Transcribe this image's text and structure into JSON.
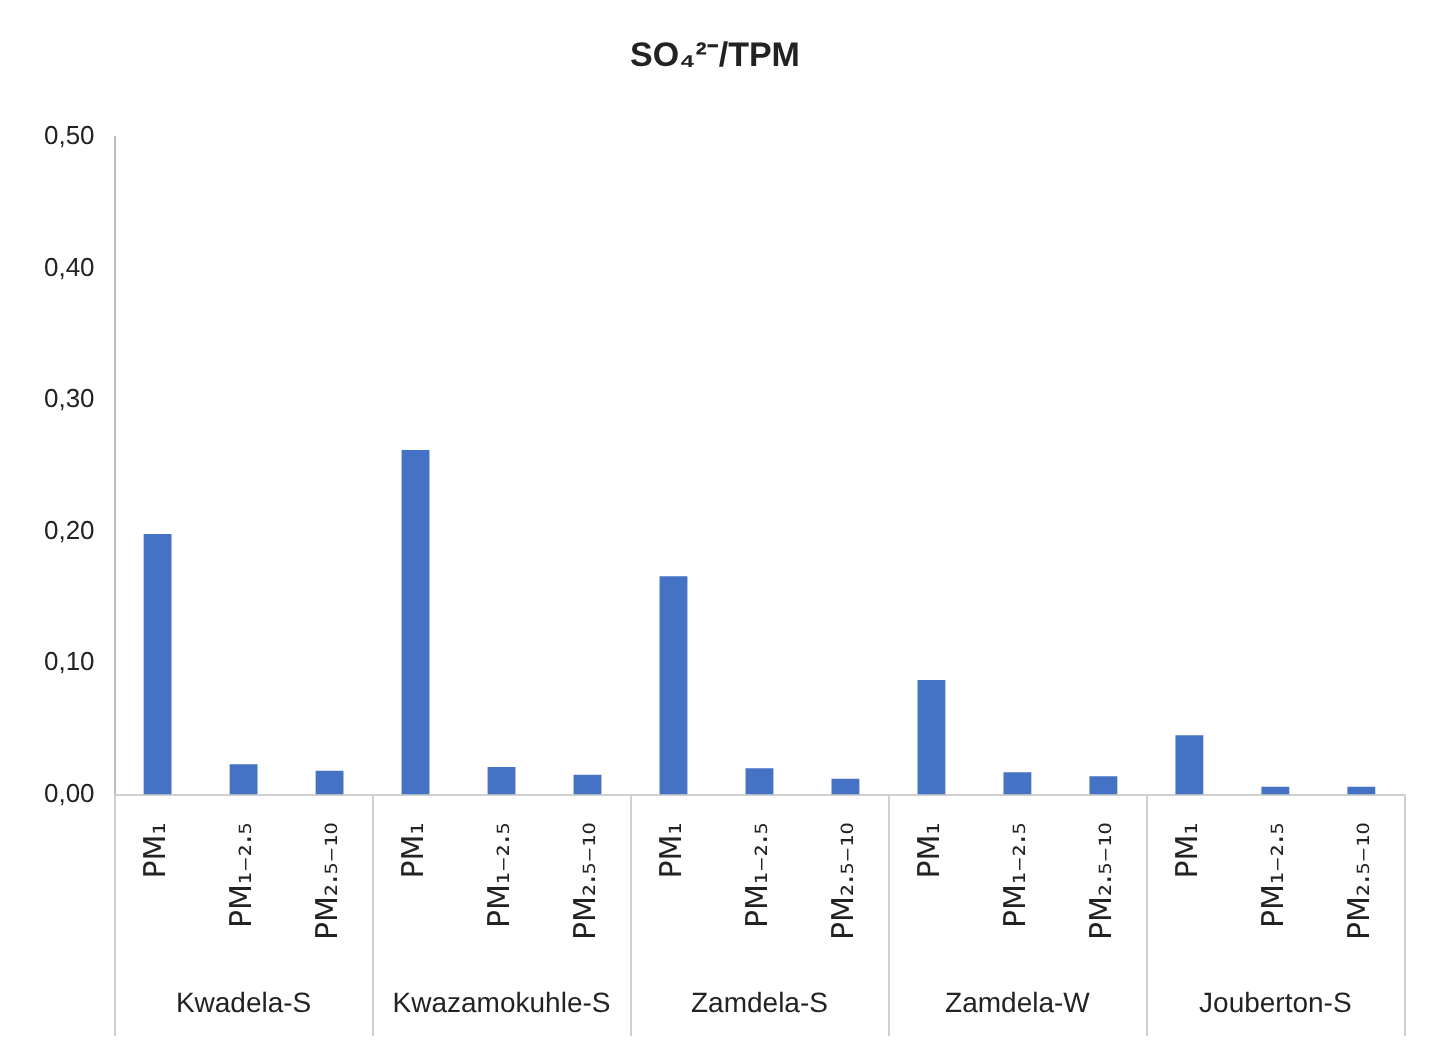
{
  "chart_data": {
    "type": "bar",
    "title": "SO₄²⁻/TPM",
    "categories": [
      "PM₁",
      "PM₁₋₂.₅",
      "PM₂.₅₋₁₀",
      "PM₁",
      "PM₁₋₂.₅",
      "PM₂.₅₋₁₀",
      "PM₁",
      "PM₁₋₂.₅",
      "PM₂.₅₋₁₀",
      "PM₁",
      "PM₁₋₂.₅",
      "PM₂.₅₋₁₀",
      "PM₁",
      "PM₁₋₂.₅",
      "PM₂.₅₋₁₀"
    ],
    "values": [
      0.198,
      0.023,
      0.018,
      0.262,
      0.021,
      0.015,
      0.166,
      0.02,
      0.012,
      0.087,
      0.017,
      0.014,
      0.045,
      0.006,
      0.006
    ],
    "color": "#4472c4",
    "annotations": [
      "Kwadela-S",
      "Kwazamokuhle-S",
      "Zamdela-S",
      "Zamdela-W",
      "Jouberton-S"
    ],
    "ylim": [
      0,
      0.5
    ],
    "yticks": [
      {
        "value": 0,
        "label": "0,00"
      },
      {
        "value": 0.1,
        "label": "0,10"
      },
      {
        "value": 0.2,
        "label": "0,20"
      },
      {
        "value": 0.3,
        "label": "0,30"
      },
      {
        "value": 0.4,
        "label": "0,40"
      },
      {
        "value": 0.5,
        "label": "0,50"
      }
    ],
    "grid": false,
    "legend": false
  }
}
